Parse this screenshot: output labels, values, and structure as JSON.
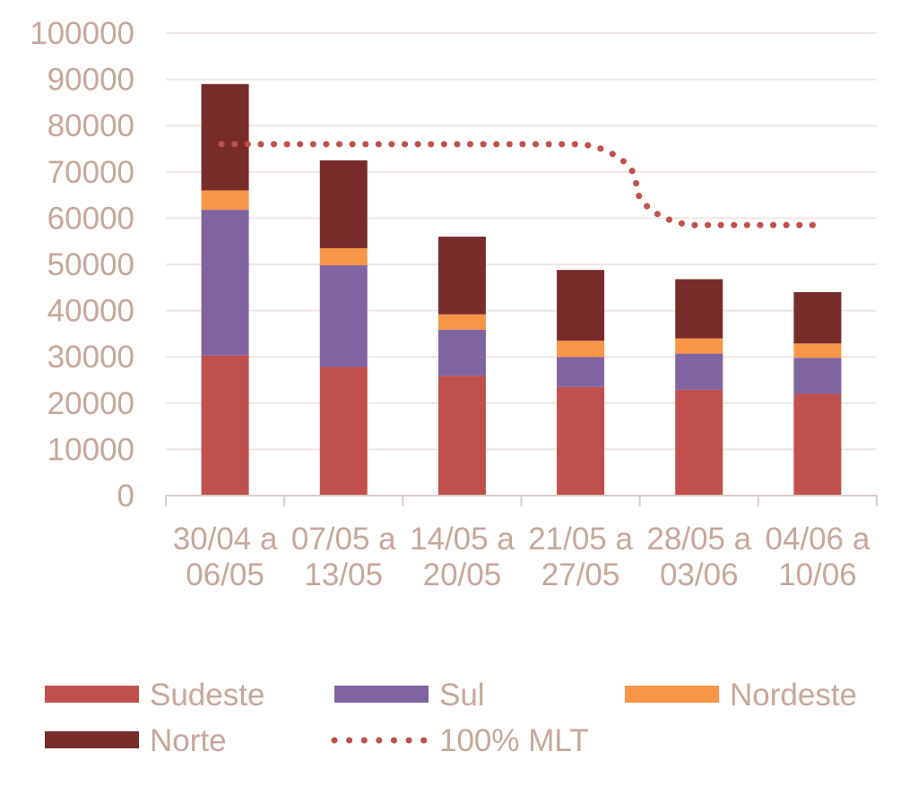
{
  "chart_data": {
    "type": "bar",
    "stacked": true,
    "categories": [
      "30/04 a 06/05",
      "07/05 a 13/05",
      "14/05 a 20/05",
      "21/05 a 27/05",
      "28/05 a 03/06",
      "04/06 a 10/06"
    ],
    "category_lines": [
      [
        "30/04 a",
        "06/05"
      ],
      [
        "07/05 a",
        "13/05"
      ],
      [
        "14/05 a",
        "20/05"
      ],
      [
        "21/05 a",
        "27/05"
      ],
      [
        "28/05 a",
        "03/06"
      ],
      [
        "04/06 a",
        "10/06"
      ]
    ],
    "series": [
      {
        "name": "Sudeste",
        "color": "#c0504d",
        "values": [
          30300,
          27800,
          25900,
          23500,
          22900,
          22000
        ]
      },
      {
        "name": "Sul",
        "color": "#8064a2",
        "values": [
          31500,
          22000,
          10000,
          6500,
          7800,
          7800
        ]
      },
      {
        "name": "Nordeste",
        "color": "#f79646",
        "values": [
          4200,
          3700,
          3300,
          3500,
          3300,
          3100
        ]
      },
      {
        "name": "Norte",
        "color": "#772c2a",
        "values": [
          23000,
          19000,
          16800,
          15300,
          12800,
          11100
        ]
      }
    ],
    "line_series": {
      "name": "100% MLT",
      "color": "#c0504d",
      "style": "dotted",
      "values": [
        76000,
        76000,
        76000,
        76000,
        58500,
        58500
      ]
    },
    "ylim": [
      0,
      100000
    ],
    "yticks": [
      "0",
      "10000",
      "20000",
      "30000",
      "40000",
      "50000",
      "60000",
      "70000",
      "80000",
      "90000",
      "100000"
    ],
    "title": "",
    "xlabel": "",
    "ylabel": "",
    "grid": true,
    "legend_position": "bottom",
    "tick_color": "#c7a79b"
  }
}
